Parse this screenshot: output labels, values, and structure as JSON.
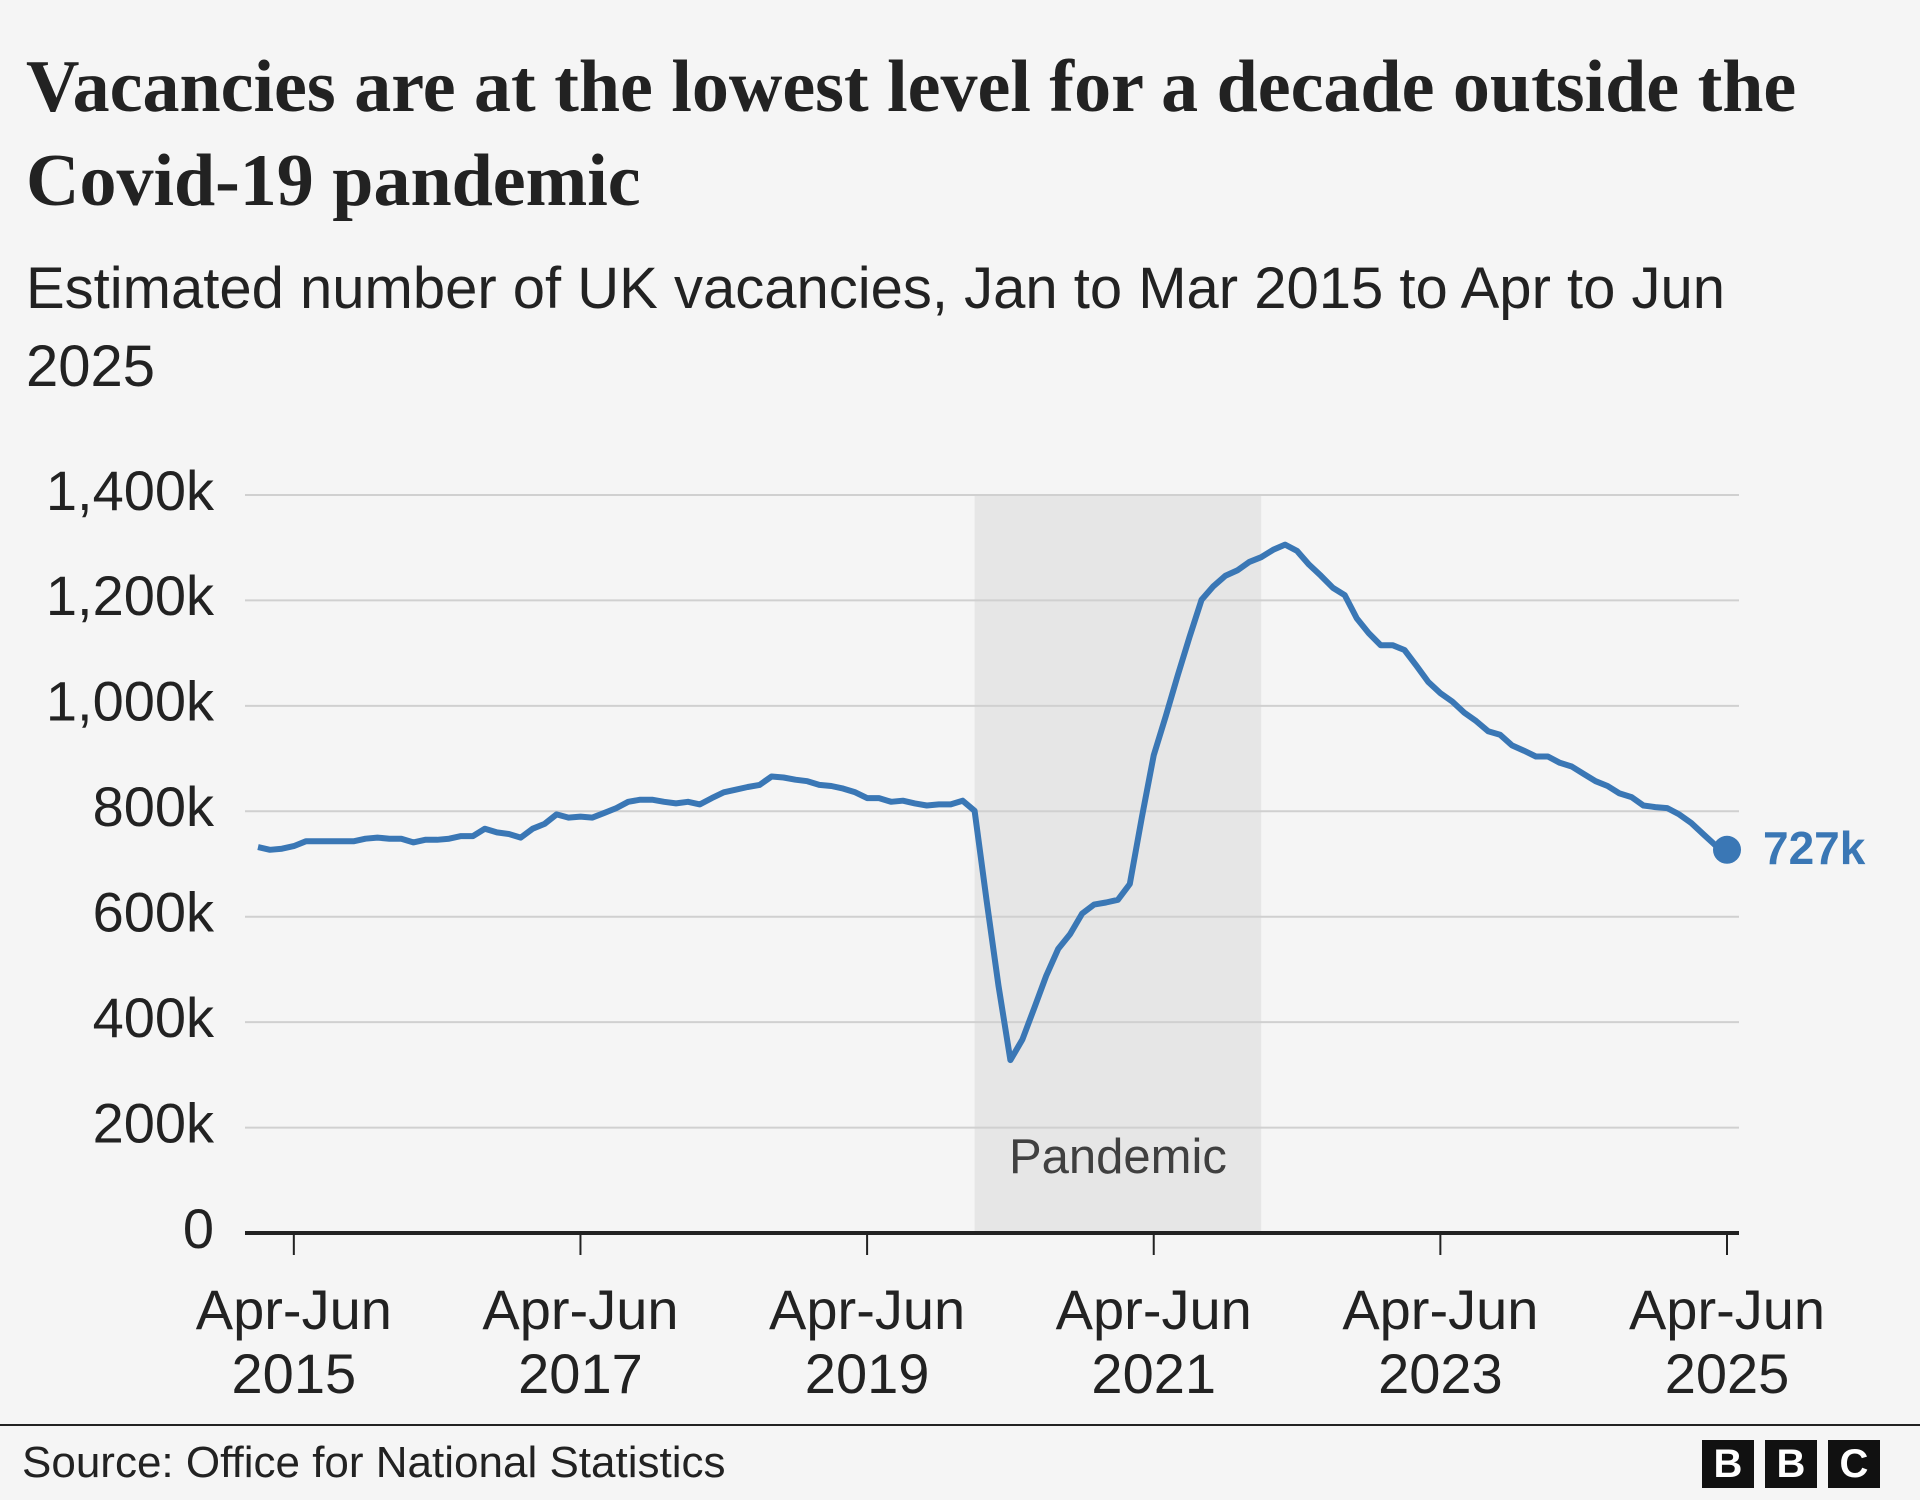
{
  "chart_data": {
    "type": "line",
    "title": "Vacancies are at the lowest level for a decade outside the Covid-19 pandemic",
    "subtitle": "Estimated number of UK vacancies, Jan to Mar 2015 to Apr to Jun 2025",
    "categories": [
      null,
      null,
      null,
      "Apr-Jun 2015",
      null,
      null,
      null,
      null,
      null,
      null,
      null,
      null,
      null,
      null,
      null,
      null,
      null,
      null,
      null,
      null,
      null,
      null,
      null,
      null,
      null,
      null,
      null,
      "Apr-Jun 2017",
      null,
      null,
      null,
      null,
      null,
      null,
      null,
      null,
      null,
      null,
      null,
      null,
      null,
      null,
      null,
      null,
      null,
      null,
      null,
      null,
      null,
      null,
      null,
      "Apr-Jun 2019",
      null,
      null,
      null,
      null,
      null,
      null,
      null,
      null,
      null,
      null,
      null,
      null,
      null,
      null,
      null,
      null,
      null,
      null,
      null,
      null,
      null,
      null,
      null,
      "Apr-Jun 2021",
      null,
      null,
      null,
      null,
      null,
      null,
      null,
      null,
      null,
      null,
      null,
      null,
      null,
      null,
      null,
      null,
      null,
      null,
      null,
      null,
      null,
      null,
      null,
      "Apr-Jun 2023",
      null,
      null,
      null,
      null,
      null,
      null,
      null,
      null,
      null,
      null,
      null,
      null,
      null,
      null,
      null,
      null,
      null,
      null,
      null,
      null,
      null,
      null,
      null,
      "Apr-Jun 2025"
    ],
    "values": [
      732,
      727,
      729,
      734,
      743,
      743,
      743,
      743,
      743,
      748,
      750,
      748,
      748,
      741,
      746,
      746,
      748,
      753,
      753,
      767,
      760,
      757,
      750,
      767,
      776,
      794,
      788,
      790,
      788,
      797,
      806,
      818,
      822,
      822,
      818,
      815,
      818,
      813,
      825,
      836,
      841,
      846,
      850,
      866,
      864,
      860,
      857,
      850,
      848,
      843,
      836,
      825,
      825,
      818,
      820,
      815,
      811,
      813,
      813,
      820,
      801,
      632,
      469,
      328,
      367,
      427,
      488,
      539,
      567,
      606,
      623,
      627,
      632,
      662,
      788,
      906,
      980,
      1057,
      1131,
      1201,
      1227,
      1247,
      1257,
      1273,
      1282,
      1296,
      1306,
      1294,
      1268,
      1247,
      1224,
      1210,
      1166,
      1138,
      1115,
      1115,
      1106,
      1076,
      1045,
      1024,
      1008,
      987,
      971,
      952,
      945,
      925,
      915,
      904,
      904,
      892,
      885,
      871,
      857,
      848,
      834,
      827,
      811,
      808,
      806,
      794,
      778,
      757,
      736,
      727
    ],
    "value_labels": [
      null,
      null,
      null,
      null,
      null,
      null,
      null,
      null,
      null,
      null,
      null,
      null,
      null,
      null,
      null,
      null,
      null,
      null,
      null,
      null,
      null,
      null,
      null,
      null,
      null,
      null,
      null,
      null,
      null,
      null,
      null,
      null,
      null,
      null,
      null,
      null,
      null,
      null,
      null,
      null,
      null,
      null,
      null,
      null,
      null,
      null,
      null,
      null,
      null,
      null,
      null,
      null,
      null,
      null,
      null,
      null,
      null,
      null,
      null,
      null,
      null,
      null,
      null,
      null,
      null,
      null,
      null,
      null,
      null,
      null,
      null,
      null,
      null,
      null,
      null,
      null,
      null,
      null,
      null,
      null,
      null,
      null,
      null,
      null,
      null,
      null,
      null,
      null,
      null,
      null,
      null,
      null,
      null,
      null,
      null,
      null,
      null,
      null,
      null,
      null,
      null,
      null,
      null,
      null,
      null,
      null,
      null,
      null,
      null,
      null,
      null,
      null,
      null,
      null,
      null,
      null,
      null,
      null,
      null,
      null,
      null,
      null,
      null,
      "727k"
    ],
    "color": "#3a77b5",
    "ylim": [
      0,
      1400
    ],
    "yticks": [
      0,
      {
        "value": 200,
        "label": "200k"
      },
      {
        "value": 400,
        "label": "400k"
      },
      {
        "value": 600,
        "label": "600k"
      },
      {
        "value": 800,
        "label": "800k"
      },
      {
        "value": 1000,
        "label": "1,000k"
      },
      {
        "value": 1200,
        "label": "1,200k"
      },
      {
        "value": 1400,
        "label": "1,400k"
      }
    ],
    "grid": true,
    "shade": {
      "start": 60,
      "end": 84,
      "label": "Pandemic",
      "color": "#e6e6e6"
    },
    "source": "Source: Office for National Statistics",
    "logo": [
      "B",
      "B",
      "C"
    ]
  }
}
